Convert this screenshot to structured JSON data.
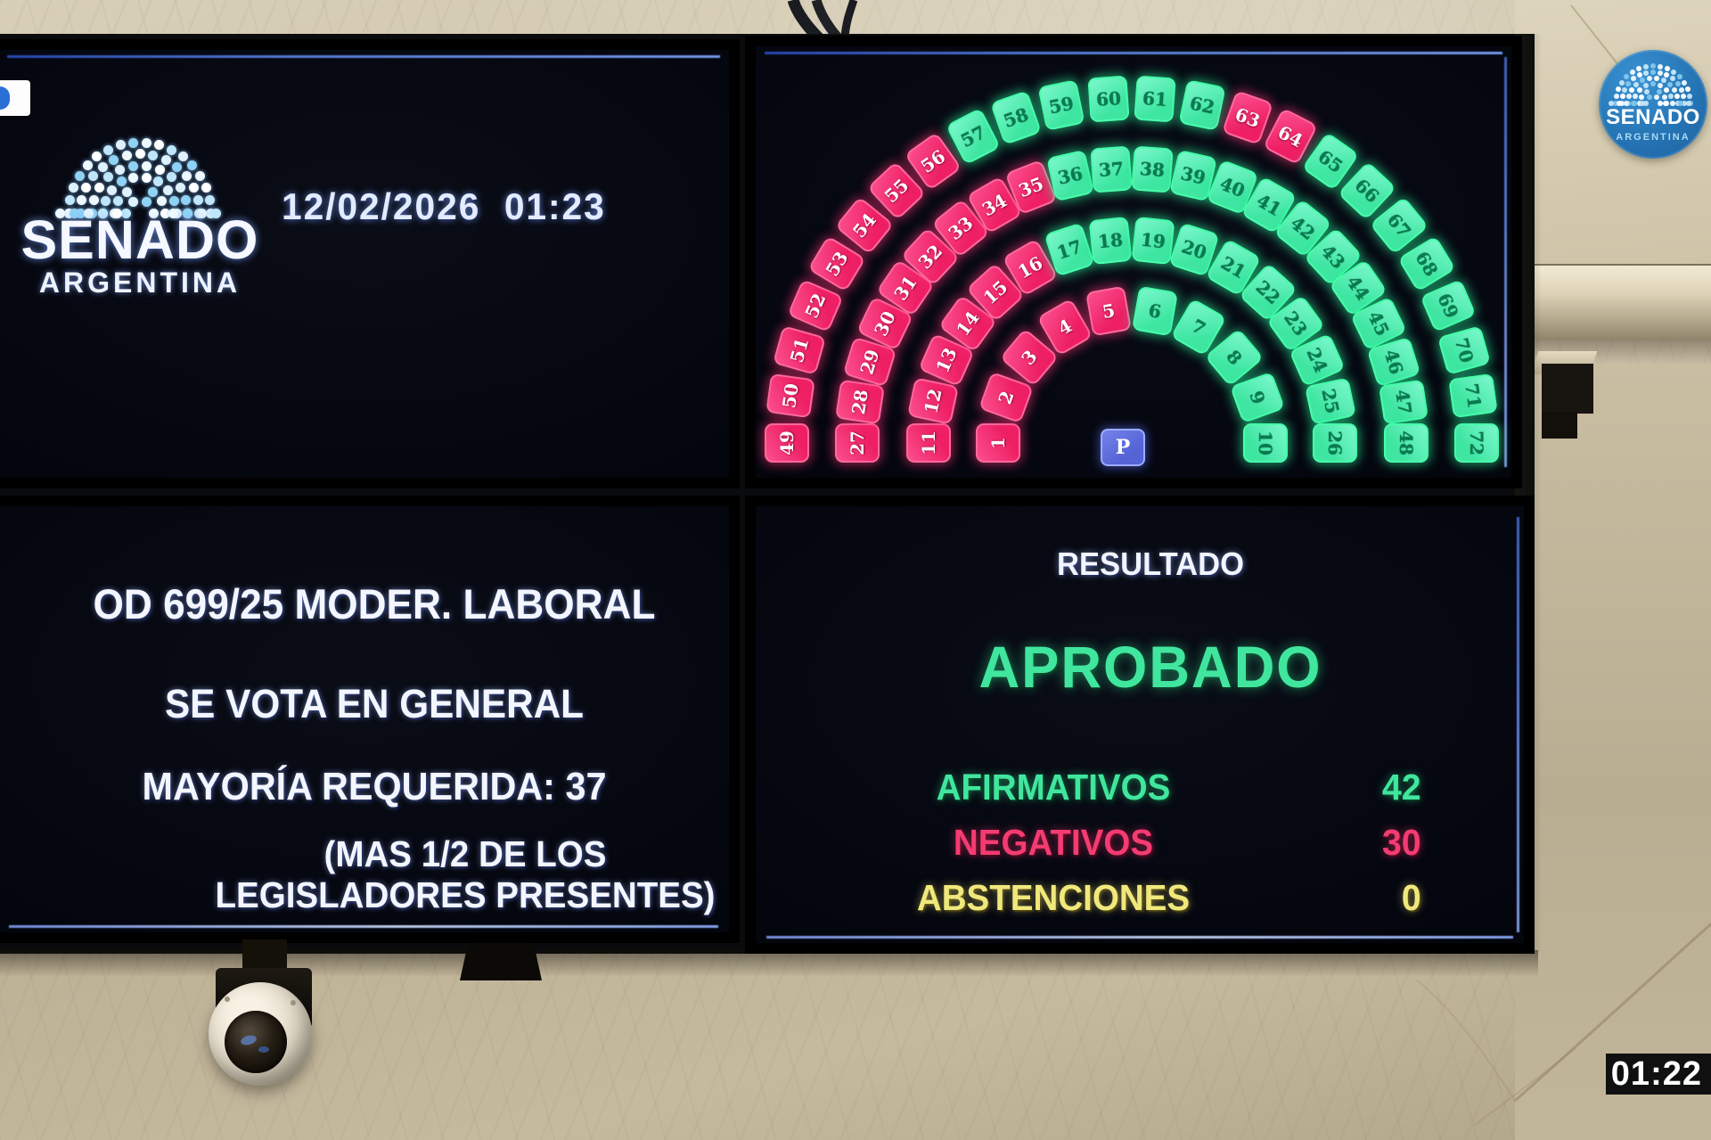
{
  "top_left_screen": {
    "logo_title": "SENADO",
    "logo_subtitle": "ARGENTINA",
    "datetime": "12/02/2026  01:23"
  },
  "seat_map": {
    "president_label": "P",
    "colors": {
      "affirmative": "#3fe6a2",
      "negative": "#ee1f64",
      "president": "#5463d6"
    },
    "rows": [
      {
        "seats": [
          {
            "n": 1,
            "v": "neg"
          },
          {
            "n": 2,
            "v": "neg"
          },
          {
            "n": 3,
            "v": "neg"
          },
          {
            "n": 4,
            "v": "neg"
          },
          {
            "n": 5,
            "v": "neg"
          },
          {
            "n": 6,
            "v": "aff"
          },
          {
            "n": 7,
            "v": "aff"
          },
          {
            "n": 8,
            "v": "aff"
          },
          {
            "n": 9,
            "v": "aff"
          },
          {
            "n": 10,
            "v": "aff"
          }
        ]
      },
      {
        "seats": [
          {
            "n": 11,
            "v": "neg"
          },
          {
            "n": 12,
            "v": "neg"
          },
          {
            "n": 13,
            "v": "neg"
          },
          {
            "n": 14,
            "v": "neg"
          },
          {
            "n": 15,
            "v": "neg"
          },
          {
            "n": 16,
            "v": "neg"
          },
          {
            "n": 17,
            "v": "aff"
          },
          {
            "n": 18,
            "v": "aff"
          },
          {
            "n": 19,
            "v": "aff"
          },
          {
            "n": 20,
            "v": "aff"
          },
          {
            "n": 21,
            "v": "aff"
          },
          {
            "n": 22,
            "v": "aff"
          },
          {
            "n": 23,
            "v": "aff"
          },
          {
            "n": 24,
            "v": "aff"
          },
          {
            "n": 25,
            "v": "aff"
          },
          {
            "n": 26,
            "v": "aff"
          }
        ]
      },
      {
        "seats": [
          {
            "n": 27,
            "v": "neg"
          },
          {
            "n": 28,
            "v": "neg"
          },
          {
            "n": 29,
            "v": "neg"
          },
          {
            "n": 30,
            "v": "neg"
          },
          {
            "n": 31,
            "v": "neg"
          },
          {
            "n": 32,
            "v": "neg"
          },
          {
            "n": 33,
            "v": "neg"
          },
          {
            "n": 34,
            "v": "neg"
          },
          {
            "n": 35,
            "v": "neg"
          },
          {
            "n": 36,
            "v": "aff"
          },
          {
            "n": 37,
            "v": "aff"
          },
          {
            "n": 38,
            "v": "aff"
          },
          {
            "n": 39,
            "v": "aff"
          },
          {
            "n": 40,
            "v": "aff"
          },
          {
            "n": 41,
            "v": "aff"
          },
          {
            "n": 42,
            "v": "aff"
          },
          {
            "n": 43,
            "v": "aff"
          },
          {
            "n": 44,
            "v": "aff"
          },
          {
            "n": 45,
            "v": "aff"
          },
          {
            "n": 46,
            "v": "aff"
          },
          {
            "n": 47,
            "v": "aff"
          },
          {
            "n": 48,
            "v": "aff"
          }
        ]
      },
      {
        "seats": [
          {
            "n": 49,
            "v": "neg"
          },
          {
            "n": 50,
            "v": "neg"
          },
          {
            "n": 51,
            "v": "neg"
          },
          {
            "n": 52,
            "v": "neg"
          },
          {
            "n": 53,
            "v": "neg"
          },
          {
            "n": 54,
            "v": "neg"
          },
          {
            "n": 55,
            "v": "neg"
          },
          {
            "n": 56,
            "v": "neg"
          },
          {
            "n": 57,
            "v": "aff"
          },
          {
            "n": 58,
            "v": "aff"
          },
          {
            "n": 59,
            "v": "aff"
          },
          {
            "n": 60,
            "v": "aff"
          },
          {
            "n": 61,
            "v": "aff"
          },
          {
            "n": 62,
            "v": "aff"
          },
          {
            "n": 63,
            "v": "neg"
          },
          {
            "n": 64,
            "v": "neg"
          },
          {
            "n": 65,
            "v": "aff"
          },
          {
            "n": 66,
            "v": "aff"
          },
          {
            "n": 67,
            "v": "aff"
          },
          {
            "n": 68,
            "v": "aff"
          },
          {
            "n": 69,
            "v": "aff"
          },
          {
            "n": 70,
            "v": "aff"
          },
          {
            "n": 71,
            "v": "aff"
          },
          {
            "n": 72,
            "v": "aff"
          }
        ]
      }
    ]
  },
  "motion_screen": {
    "lines": [
      "OD 699/25 MODER. LABORAL",
      "SE VOTA EN GENERAL",
      "MAYORÍA REQUERIDA: 37",
      "(MAS 1/2 DE LOS LEGISLADORES PRESENTES)"
    ]
  },
  "result_screen": {
    "title": "RESULTADO",
    "verdict": "APROBADO",
    "rows": [
      {
        "label": "AFIRMATIVOS",
        "value": "42",
        "color": "#41e69e"
      },
      {
        "label": "NEGATIVOS",
        "value": "30",
        "color": "#f43b72"
      },
      {
        "label": "ABSTENCIONES",
        "value": "0",
        "color": "#f0e87c"
      }
    ]
  },
  "watermark_badge": {
    "title": "SENADO",
    "subtitle": "ARGENTINA"
  },
  "video_timestamp": "01:22"
}
